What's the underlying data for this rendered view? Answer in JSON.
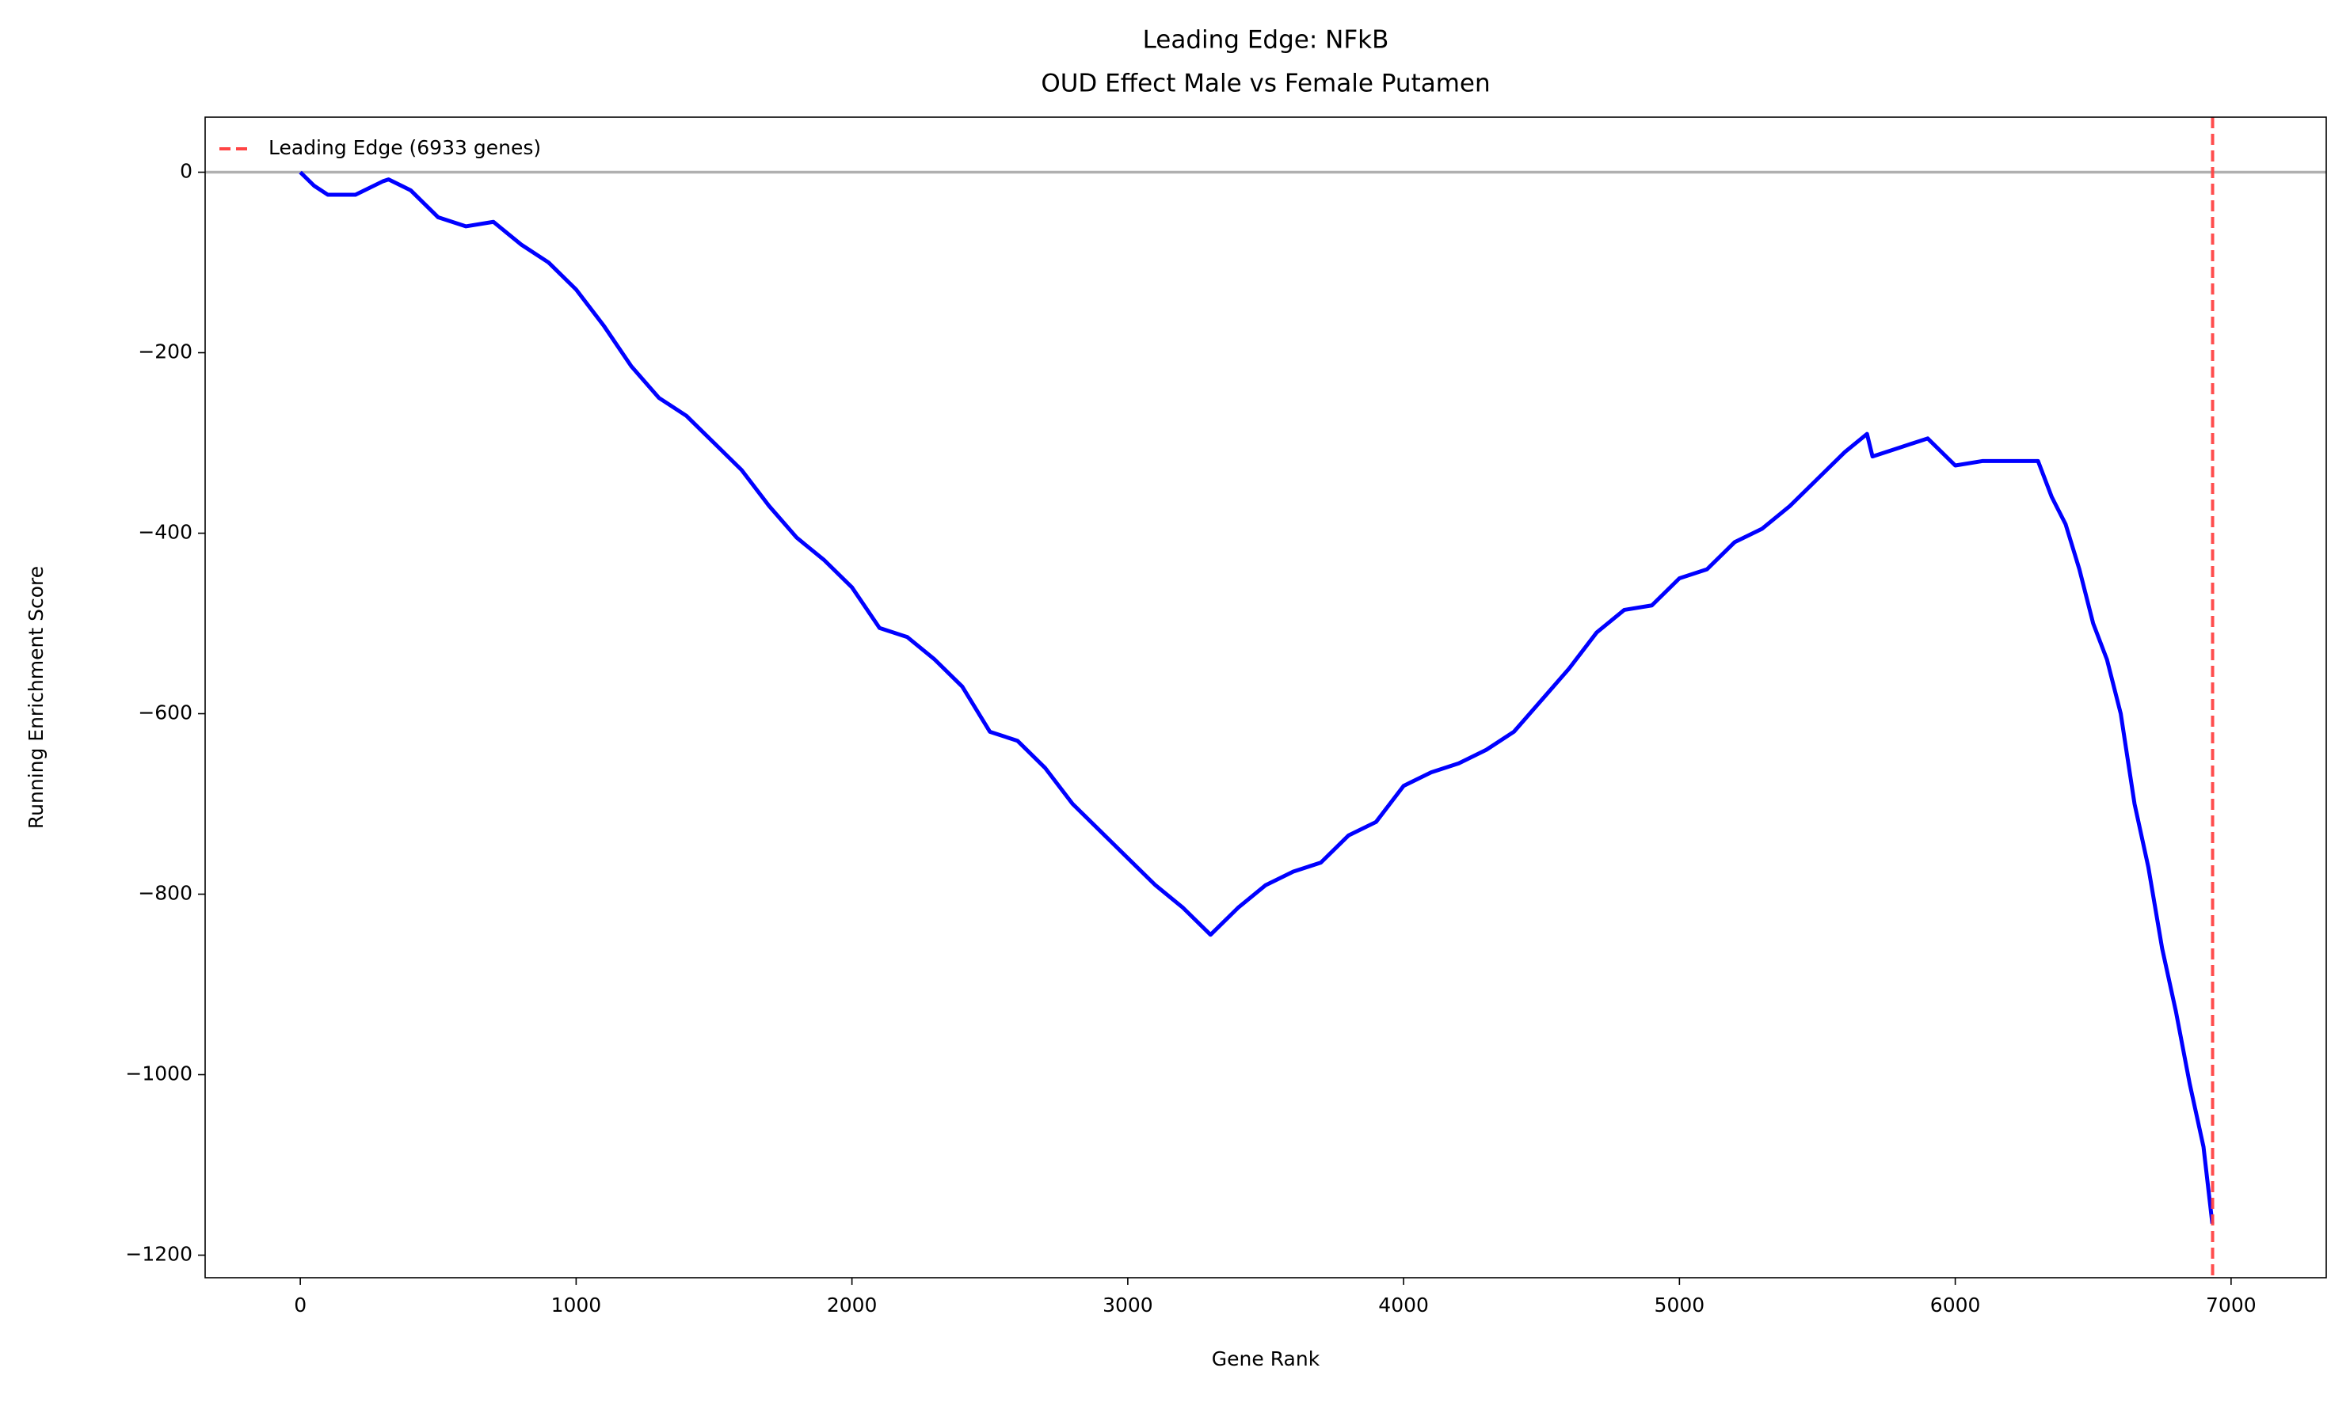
{
  "chart_data": {
    "type": "line",
    "title": "Leading Edge: NFkB",
    "subtitle": "OUD Effect Male vs Female Putamen",
    "x_label": "Gene Rank",
    "y_label": "Running Enrichment Score",
    "x": [
      0,
      50,
      100,
      200,
      300,
      320,
      400,
      500,
      600,
      700,
      800,
      900,
      1000,
      1100,
      1200,
      1300,
      1400,
      1500,
      1600,
      1700,
      1800,
      1900,
      2000,
      2100,
      2200,
      2300,
      2400,
      2500,
      2600,
      2700,
      2800,
      2900,
      3000,
      3100,
      3200,
      3300,
      3400,
      3500,
      3600,
      3700,
      3800,
      3900,
      4000,
      4100,
      4200,
      4300,
      4400,
      4500,
      4600,
      4700,
      4800,
      4900,
      5000,
      5100,
      5200,
      5300,
      5400,
      5500,
      5600,
      5680,
      5700,
      5800,
      5900,
      6000,
      6100,
      6200,
      6300,
      6350,
      6400,
      6450,
      6500,
      6550,
      6600,
      6650,
      6700,
      6750,
      6800,
      6850,
      6900,
      6932
    ],
    "series": [
      {
        "name": "Running Enrichment Score",
        "color": "#0000ff",
        "values": [
          0,
          -15,
          -25,
          -25,
          -10,
          -8,
          -20,
          -50,
          -60,
          -55,
          -80,
          -100,
          -130,
          -170,
          -215,
          -250,
          -270,
          -300,
          -330,
          -370,
          -405,
          -430,
          -460,
          -505,
          -515,
          -540,
          -570,
          -620,
          -630,
          -660,
          -700,
          -730,
          -760,
          -790,
          -815,
          -845,
          -815,
          -790,
          -775,
          -765,
          -735,
          -720,
          -680,
          -665,
          -655,
          -640,
          -620,
          -585,
          -550,
          -510,
          -485,
          -480,
          -450,
          -440,
          -410,
          -395,
          -370,
          -340,
          -310,
          -290,
          -315,
          -305,
          -295,
          -325,
          -320,
          -320,
          -320,
          -360,
          -390,
          -440,
          -500,
          -540,
          -600,
          -700,
          -770,
          -860,
          -930,
          -1010,
          -1080,
          -1165
        ]
      }
    ],
    "vline": {
      "value": 6933,
      "label": "Leading Edge (6933 genes)",
      "color": "#ff4444"
    },
    "hline": {
      "value": 0,
      "color": "#b0b0b0"
    },
    "xlim": [
      -345,
      7345
    ],
    "ylim": [
      -1225,
      61
    ],
    "xticks": [
      0,
      1000,
      2000,
      3000,
      4000,
      5000,
      6000,
      7000
    ],
    "yticks": [
      {
        "value": -1200,
        "label": "−1200"
      },
      {
        "value": -1000,
        "label": "−1000"
      },
      {
        "value": -800,
        "label": "−800"
      },
      {
        "value": -600,
        "label": "−600"
      },
      {
        "value": -400,
        "label": "−400"
      },
      {
        "value": -200,
        "label": "−200"
      },
      0
    ],
    "legend": "upper left"
  }
}
